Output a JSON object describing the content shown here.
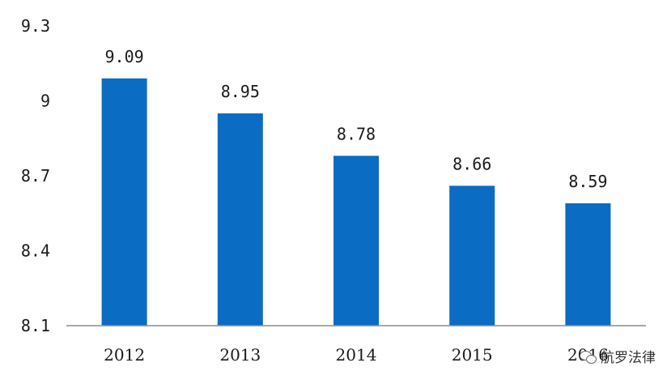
{
  "chart_data": {
    "type": "bar",
    "categories": [
      "2012",
      "2013",
      "2014",
      "2015",
      "2016"
    ],
    "values": [
      9.09,
      8.95,
      8.78,
      8.66,
      8.59
    ],
    "data_labels": [
      "9.09",
      "8.95",
      "8.78",
      "8.66",
      "8.59"
    ],
    "y_ticks": [
      "9.3",
      "9",
      "8.7",
      "8.4",
      "8.1"
    ],
    "ylim": [
      8.1,
      9.3
    ],
    "title": "",
    "xlabel": "",
    "ylabel": "",
    "grid": false,
    "bar_color": "#0a6cc2"
  },
  "watermark": {
    "icon": "wechat-icon",
    "text": "航罗法律"
  }
}
